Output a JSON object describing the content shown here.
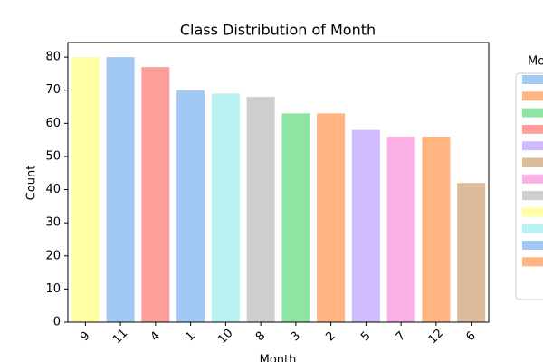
{
  "chart_data": {
    "type": "bar",
    "title": "Class Distribution of Month",
    "x_label": "Month",
    "y_label": "Count",
    "categories": [
      "9",
      "11",
      "4",
      "1",
      "10",
      "8",
      "3",
      "2",
      "5",
      "7",
      "12",
      "6"
    ],
    "values": [
      80,
      80,
      77,
      70,
      69,
      68,
      63,
      63,
      58,
      56,
      56,
      42
    ],
    "colors": [
      "#fffea3",
      "#a1c9f4",
      "#ff9f9b",
      "#a1c9f4",
      "#b9f2f0",
      "#cfcfcf",
      "#8de5a1",
      "#ffb482",
      "#d0bbff",
      "#fab0e4",
      "#ffb482",
      "#debb9b"
    ],
    "ylim": [
      0,
      84.4
    ],
    "yticks": [
      0,
      10,
      20,
      30,
      40,
      50,
      60,
      70,
      80
    ],
    "legend_title": "Mo",
    "legend_colors": [
      "#a1c9f4",
      "#ffb482",
      "#8de5a1",
      "#ff9f9b",
      "#d0bbff",
      "#debb9b",
      "#fab0e4",
      "#cfcfcf",
      "#fffea3",
      "#b9f2f0",
      "#a1c9f4",
      "#ffb482"
    ]
  }
}
